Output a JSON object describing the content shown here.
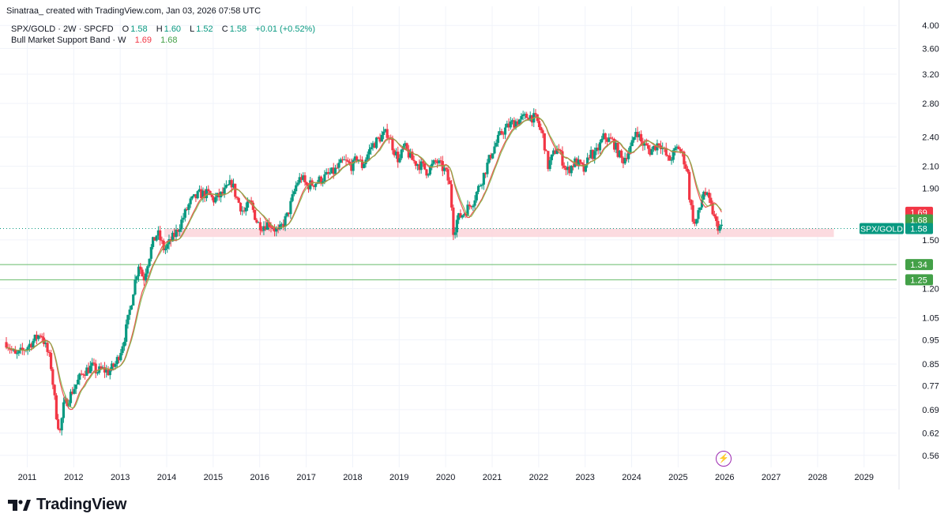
{
  "header": {
    "credit": "Sinatraa_  created with TradingView.com, Jan 03, 2026 07:58 UTC",
    "symbol": "SPX/GOLD · 2W · SPCFD",
    "o_label": "O",
    "o": "1.58",
    "h_label": "H",
    "h": "1.60",
    "l_label": "L",
    "l": "1.52",
    "c_label": "C",
    "c": "1.58",
    "change": "+0.01 (+0.52%)",
    "indicator_name": "Bull Market Support Band · W",
    "ind_val1": "1.69",
    "ind_val2": "1.68"
  },
  "footer": {
    "logo_text": "TradingView"
  },
  "icons": {
    "logo": "tradingview-logo-icon",
    "alert": "lightning-icon"
  },
  "chart_data": {
    "type": "candlestick",
    "title": "SPX/GOLD",
    "interval": "2W",
    "scale": "log",
    "x_range": [
      2010.55,
      2029.7
    ],
    "y_range": [
      0.53,
      4.15
    ],
    "x_ticks": [
      "2011",
      "2012",
      "2013",
      "2014",
      "2015",
      "2016",
      "2017",
      "2018",
      "2019",
      "2020",
      "2021",
      "2022",
      "2023",
      "2024",
      "2025",
      "2026",
      "2027",
      "2028",
      "2029"
    ],
    "y_ticks": [
      "4.00",
      "3.60",
      "3.20",
      "2.80",
      "2.40",
      "2.10",
      "1.90",
      "1.50",
      "1.20",
      "1.05",
      "0.95",
      "0.85",
      "0.77",
      "0.69",
      "0.62",
      "0.56"
    ],
    "series_close": {
      "x": [
        2010.55,
        2010.75,
        2011.0,
        2011.3,
        2011.5,
        2011.62,
        2011.7,
        2011.78,
        2011.9,
        2012.0,
        2012.2,
        2012.4,
        2012.5,
        2012.6,
        2012.75,
        2012.9,
        2013.0,
        2013.1,
        2013.2,
        2013.3,
        2013.4,
        2013.5,
        2013.6,
        2013.7,
        2013.8,
        2013.95,
        2014.1,
        2014.2,
        2014.3,
        2014.5,
        2014.7,
        2014.9,
        2015.0,
        2015.2,
        2015.4,
        2015.5,
        2015.65,
        2015.8,
        2015.95,
        2016.05,
        2016.2,
        2016.4,
        2016.6,
        2016.8,
        2016.9,
        2017.0,
        2017.2,
        2017.4,
        2017.6,
        2017.8,
        2018.0,
        2018.1,
        2018.2,
        2018.4,
        2018.6,
        2018.75,
        2018.9,
        2019.0,
        2019.1,
        2019.3,
        2019.5,
        2019.6,
        2019.8,
        2020.0,
        2020.1,
        2020.17,
        2020.25,
        2020.4,
        2020.6,
        2020.8,
        2021.0,
        2021.2,
        2021.4,
        2021.6,
        2021.8,
        2021.95,
        2022.1,
        2022.2,
        2022.4,
        2022.6,
        2022.8,
        2023.0,
        2023.1,
        2023.2,
        2023.4,
        2023.6,
        2023.8,
        2024.0,
        2024.1,
        2024.2,
        2024.4,
        2024.6,
        2024.8,
        2025.0,
        2025.1,
        2025.2,
        2025.25,
        2025.35,
        2025.45,
        2025.55,
        2025.65,
        2025.75,
        2025.8,
        2025.85,
        2025.95
      ],
      "y": [
        0.94,
        0.88,
        0.92,
        0.98,
        0.86,
        0.68,
        0.62,
        0.7,
        0.73,
        0.76,
        0.82,
        0.84,
        0.82,
        0.83,
        0.82,
        0.85,
        0.9,
        0.97,
        1.08,
        1.22,
        1.35,
        1.25,
        1.37,
        1.48,
        1.55,
        1.43,
        1.5,
        1.55,
        1.62,
        1.78,
        1.85,
        1.85,
        1.8,
        1.85,
        1.95,
        1.82,
        1.7,
        1.78,
        1.62,
        1.6,
        1.62,
        1.55,
        1.68,
        1.95,
        2.0,
        1.92,
        1.95,
        2.0,
        2.05,
        2.15,
        2.1,
        2.2,
        2.1,
        2.3,
        2.4,
        2.45,
        2.25,
        2.15,
        2.3,
        2.15,
        2.1,
        2.05,
        2.15,
        2.05,
        1.9,
        1.55,
        1.65,
        1.7,
        1.8,
        2.0,
        2.25,
        2.45,
        2.55,
        2.6,
        2.65,
        2.6,
        2.4,
        2.1,
        2.3,
        2.05,
        2.15,
        2.05,
        2.25,
        2.2,
        2.4,
        2.35,
        2.15,
        2.3,
        2.5,
        2.35,
        2.25,
        2.35,
        2.15,
        2.3,
        2.2,
        2.05,
        1.8,
        1.6,
        1.7,
        1.88,
        1.8,
        1.7,
        1.62,
        1.6,
        1.58
      ]
    },
    "support_band": {
      "name": "Bull Market Support Band",
      "last_values": [
        1.69,
        1.68
      ]
    },
    "price_labels": [
      {
        "text": "1.69",
        "value": 1.69,
        "color": "#f23645"
      },
      {
        "text": "1.68",
        "value": 1.68,
        "color": "#43a047"
      },
      {
        "text": "1.58",
        "value": 1.58,
        "color": "#089981",
        "tag": "SPX/GOLD"
      },
      {
        "text": "1.34",
        "value": 1.34,
        "color": "#43a047"
      },
      {
        "text": "1.25",
        "value": 1.25,
        "color": "#43a047"
      }
    ],
    "horizontal_lines": [
      1.34,
      1.25
    ],
    "zone": {
      "from": 1.52,
      "to": 1.58,
      "start": 2013.95,
      "end": 2028.35
    },
    "grid": true
  }
}
